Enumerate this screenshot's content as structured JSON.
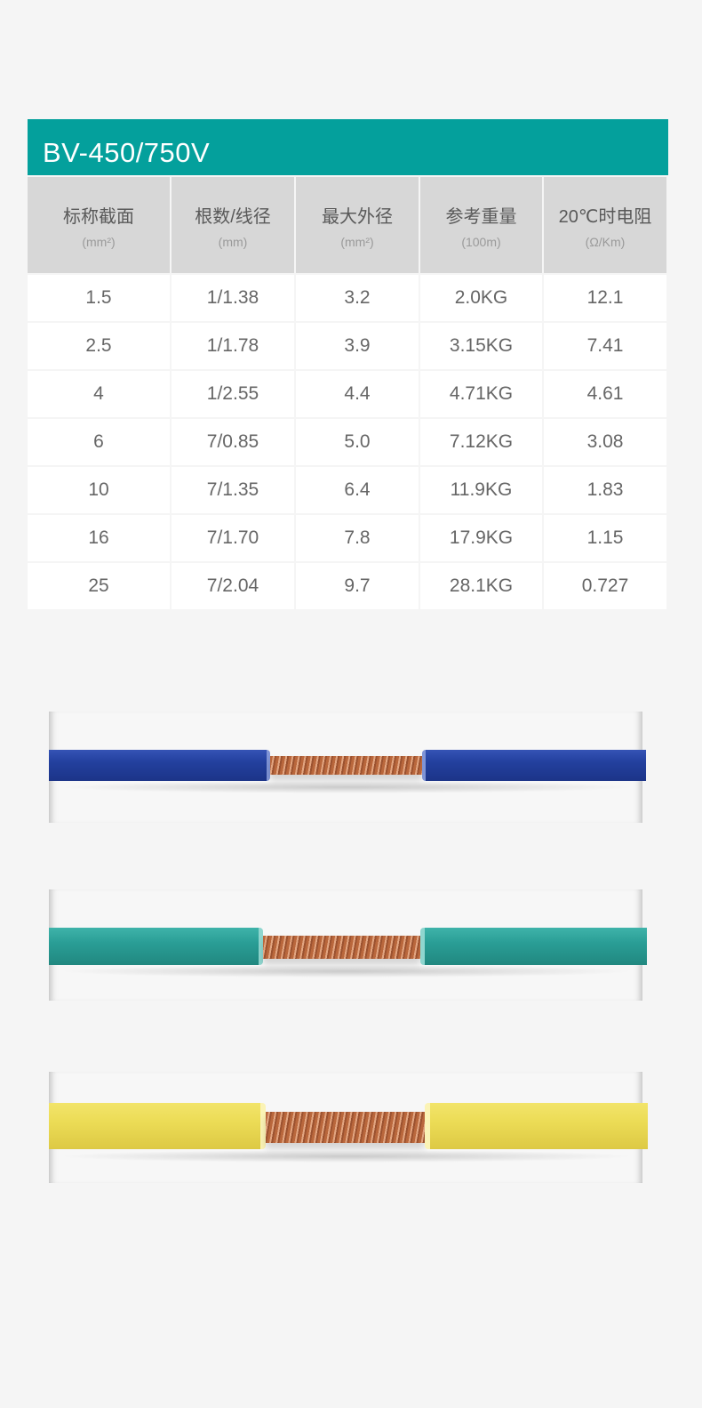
{
  "title": "BV-450/750V",
  "table": {
    "headers": [
      {
        "label": "标称截面",
        "unit": "(mm²)"
      },
      {
        "label": "根数/线径",
        "unit": "(mm)"
      },
      {
        "label": "最大外径",
        "unit": "(mm²)"
      },
      {
        "label": "参考重量",
        "unit": "(100m)"
      },
      {
        "label": "20℃时电阻",
        "unit": "(Ω/Km)"
      }
    ],
    "rows": [
      [
        "1.5",
        "1/1.38",
        "3.2",
        "2.0KG",
        "12.1"
      ],
      [
        "2.5",
        "1/1.78",
        "3.9",
        "3.15KG",
        "7.41"
      ],
      [
        "4",
        "1/2.55",
        "4.4",
        "4.71KG",
        "4.61"
      ],
      [
        "6",
        "7/0.85",
        "5.0",
        "7.12KG",
        "3.08"
      ],
      [
        "10",
        "7/1.35",
        "6.4",
        "11.9KG",
        "1.83"
      ],
      [
        "16",
        "7/1.70",
        "7.8",
        "17.9KG",
        "1.15"
      ],
      [
        "25",
        "7/2.04",
        "9.7",
        "28.1KG",
        "0.727"
      ]
    ]
  },
  "wires": [
    {
      "name": "blue",
      "color": "#23409e"
    },
    {
      "name": "teal",
      "color": "#2a9e96"
    },
    {
      "name": "yellow",
      "color": "#ecdc56"
    }
  ]
}
